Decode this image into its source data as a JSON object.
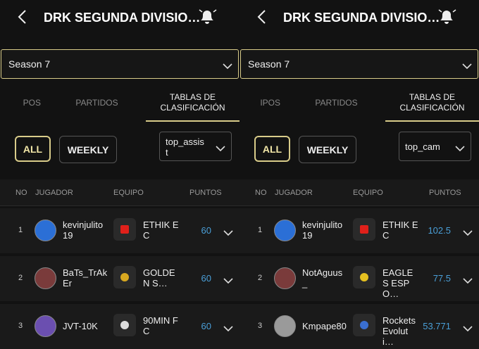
{
  "panels": [
    {
      "title": "DRK SEGUNDA DIVISIO…",
      "season": "Season 7",
      "tabs": [
        "POS",
        "PARTIDOS",
        "TABLAS DE CLASIFICACIÓN"
      ],
      "filters": [
        "ALL",
        "WEEKLY"
      ],
      "stat": "top_assist",
      "columns": [
        "NO",
        "JUGADOR",
        "EQUIPO",
        "PUNTOS"
      ],
      "rows": [
        {
          "no": 1,
          "player": "kevinjulito19",
          "team": "ETHIK EC",
          "points": 60
        },
        {
          "no": 2,
          "player": "BaTs_TrAkEr",
          "team": "GOLDEN S…",
          "points": 60
        },
        {
          "no": 3,
          "player": "JVT-10K",
          "team": "90MIN FC",
          "points": 60
        }
      ]
    },
    {
      "title": "DRK SEGUNDA DIVISIO…",
      "season": "Season 7",
      "tabs": [
        "IPOS",
        "PARTIDOS",
        "TABLAS DE CLASIFICACIÓN"
      ],
      "filters": [
        "ALL",
        "WEEKLY"
      ],
      "stat": "top_cam",
      "columns": [
        "NO",
        "JUGADOR",
        "EQUIPO",
        "PUNTOS"
      ],
      "rows": [
        {
          "no": 1,
          "player": "kevinjulito19",
          "team": "ETHIK EC",
          "points": 102.5
        },
        {
          "no": 2,
          "player": "NotAguus_",
          "team": "EAGLES ESPO…",
          "points": 77.5
        },
        {
          "no": 3,
          "player": "Kmpape80",
          "team": "Rockets Evoluti…",
          "points": 53.771
        }
      ]
    }
  ]
}
